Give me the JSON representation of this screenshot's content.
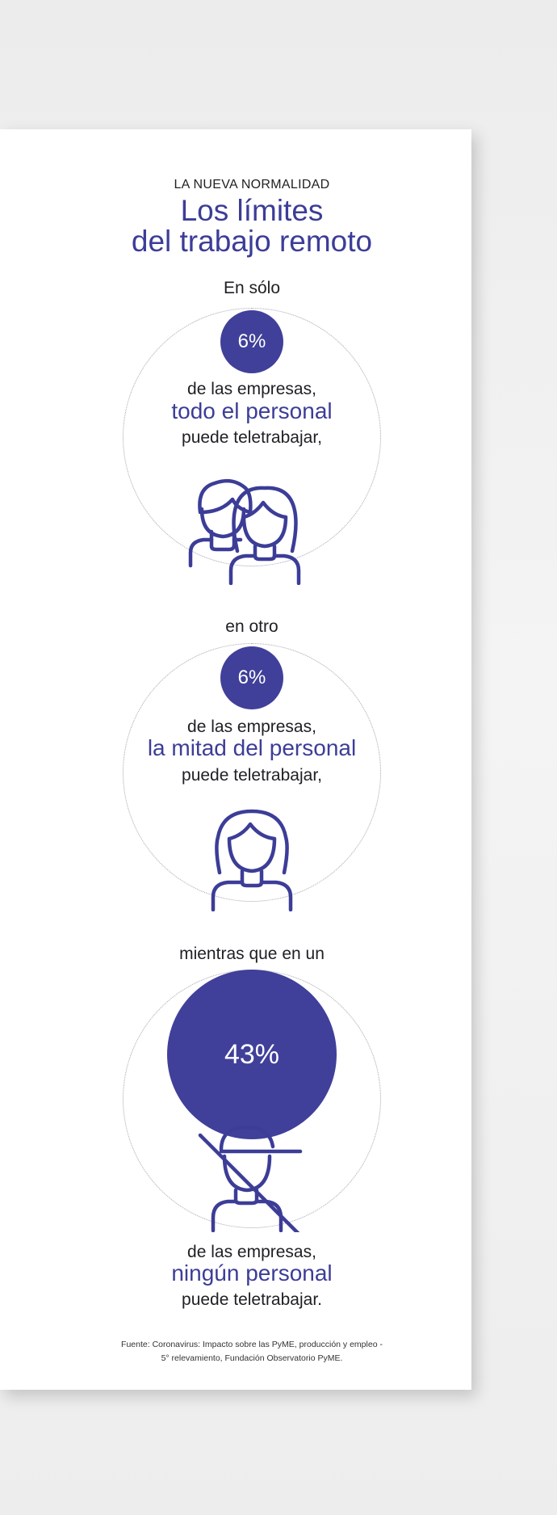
{
  "header": {
    "kicker": "LA NUEVA NORMALIDAD",
    "title_line1": "Los límites",
    "title_line2": "del trabajo remoto"
  },
  "sections": [
    {
      "lead": "En sólo",
      "percent": "6%",
      "line1": "de las empresas,",
      "highlight": "todo el personal",
      "line3": "puede teletrabajar,",
      "icon": "two-people-icon"
    },
    {
      "lead": "en otro",
      "percent": "6%",
      "line1": "de las empresas,",
      "highlight": "la mitad del personal",
      "line3": "puede teletrabajar,",
      "icon": "woman-icon"
    },
    {
      "lead": "mientras que en un",
      "percent": "43%",
      "line1": "de las empresas,",
      "highlight": "ningún personal",
      "line3": "puede teletrabajar.",
      "icon": "crossed-out-person-icon"
    }
  ],
  "footer": {
    "source_line1": "Fuente: Coronavirus: Impacto sobre las PyME, producción y empleo -",
    "source_line2": "5° relevamiento, Fundación Observatorio PyME."
  },
  "colors": {
    "accent": "#3c3d97",
    "circle_fill": "#40409a",
    "text": "#1f1f24",
    "ring": "#a3a3b0",
    "background": "#eeeeee",
    "paper": "#ffffff"
  }
}
